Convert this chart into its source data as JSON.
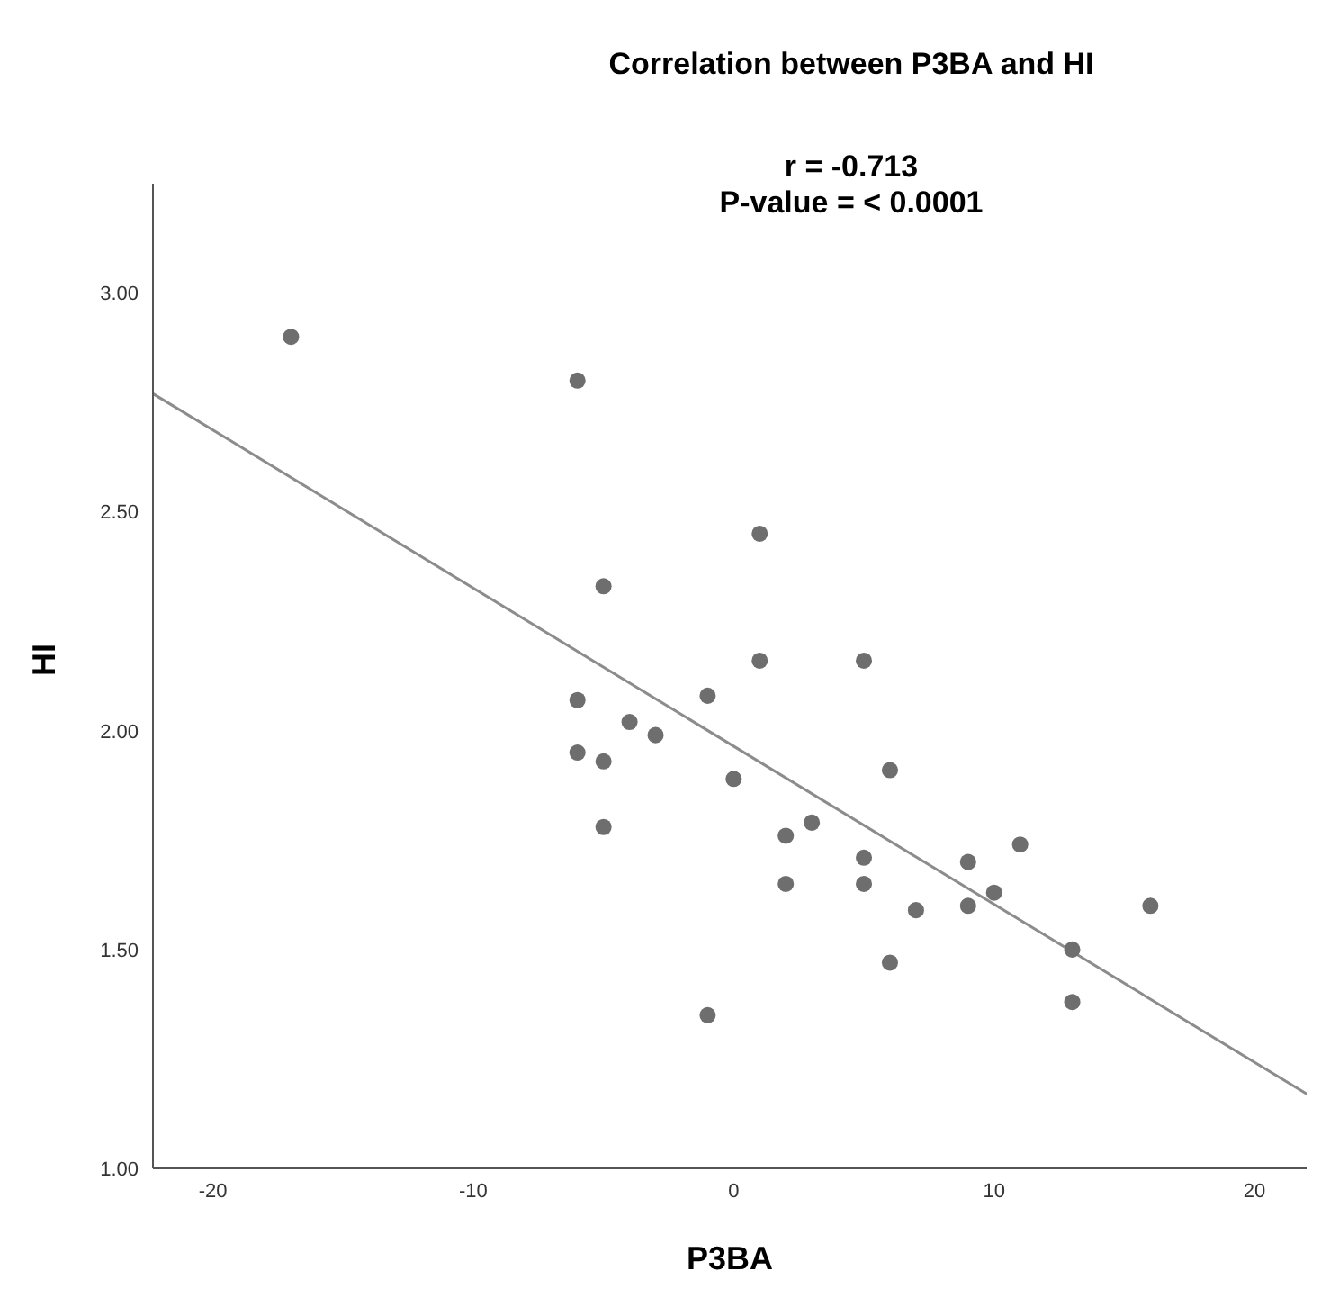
{
  "chart_data": {
    "type": "scatter",
    "title": "Correlation between P3BA and HI",
    "annotations": [
      "r = -0.713",
      "P-value = < 0.0001"
    ],
    "xlabel": "P3BA",
    "ylabel": "HI",
    "xlim": [
      -22.3,
      22
    ],
    "ylim": [
      1,
      3.25
    ],
    "xticks": [
      -20,
      -10,
      0,
      10,
      20
    ],
    "yticks": [
      {
        "value": 1,
        "label": "1.00"
      },
      {
        "value": 1.5,
        "label": "1.50"
      },
      {
        "value": 2,
        "label": "2.00"
      },
      {
        "value": 2.5,
        "label": "2.50"
      },
      {
        "value": 3,
        "label": "3.00"
      }
    ],
    "series": [
      {
        "marker": "circle",
        "color": "#6e6e6e",
        "x": [
          1,
          -5,
          1,
          5,
          -6,
          -1,
          -4,
          -3,
          -6,
          -5,
          6,
          0,
          -5,
          3,
          2,
          5,
          9,
          11,
          2,
          5,
          10,
          7,
          9,
          16,
          13,
          6,
          13,
          -1,
          -17,
          -6
        ],
        "values": [
          2.45,
          2.33,
          2.16,
          2.16,
          2.07,
          2.08,
          2.02,
          1.99,
          1.95,
          1.93,
          1.91,
          1.89,
          1.78,
          1.79,
          1.76,
          1.71,
          1.7,
          1.74,
          1.65,
          1.65,
          1.63,
          1.59,
          1.6,
          1.6,
          1.5,
          1.47,
          1.38,
          1.35,
          2.9,
          2.8
        ]
      },
      {
        "type": "line",
        "color": "#8c8c8c",
        "x": [
          -22.3,
          22
        ],
        "values": [
          2.77,
          1.17
        ]
      }
    ]
  }
}
